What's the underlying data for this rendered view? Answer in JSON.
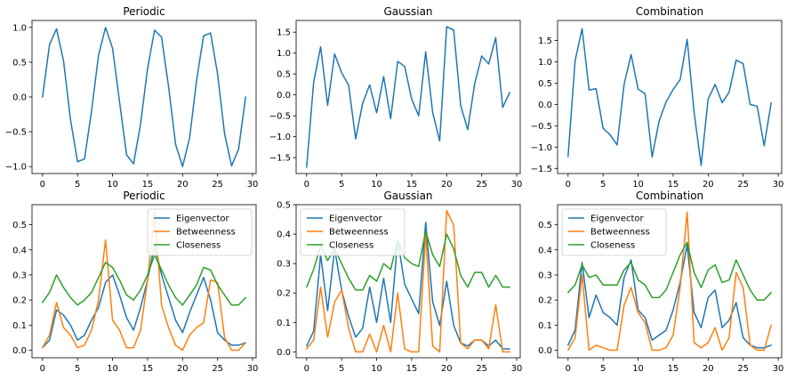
{
  "figure": {
    "rows": 2,
    "cols": 3
  },
  "colors": {
    "blue": "#1f77b4",
    "orange": "#ff7f0e",
    "green": "#2ca02c"
  },
  "chart_data": [
    {
      "type": "line",
      "title": "Periodic",
      "xlabel": "",
      "ylabel": "",
      "xlim": [
        -1.5,
        30.5
      ],
      "ylim": [
        -1.1,
        1.1
      ],
      "xticks": [
        0,
        5,
        10,
        15,
        20,
        25,
        30
      ],
      "yticks": [
        -1.0,
        -0.5,
        0.0,
        0.5,
        1.0
      ],
      "ytick_labels": [
        "−1.0",
        "−0.5",
        "0.0",
        "0.5",
        "1.0"
      ],
      "legend": null,
      "series": [
        {
          "color": "#1f77b4",
          "x": [
            0,
            1,
            2,
            3,
            4,
            5,
            6,
            7,
            8,
            9,
            10,
            11,
            12,
            13,
            14,
            15,
            16,
            17,
            18,
            19,
            20,
            21,
            22,
            23,
            24,
            25,
            26,
            27,
            28,
            29
          ],
          "values": [
            0.0,
            0.75,
            0.98,
            0.52,
            -0.33,
            -0.93,
            -0.89,
            -0.2,
            0.6,
            1.0,
            0.7,
            -0.07,
            -0.83,
            -0.96,
            -0.39,
            0.41,
            0.96,
            0.86,
            0.15,
            -0.68,
            -1.0,
            -0.59,
            0.24,
            0.88,
            0.92,
            0.33,
            -0.53,
            -0.99,
            -0.75,
            0.0
          ]
        }
      ]
    },
    {
      "type": "line",
      "title": "Gaussian",
      "xlabel": "",
      "ylabel": "",
      "xlim": [
        -1.5,
        30.5
      ],
      "ylim": [
        -1.88,
        1.78
      ],
      "xticks": [
        0,
        5,
        10,
        15,
        20,
        25,
        30
      ],
      "yticks": [
        -1.5,
        -1.0,
        -0.5,
        0.0,
        0.5,
        1.0,
        1.5
      ],
      "ytick_labels": [
        "−1.5",
        "−1.0",
        "−0.5",
        "0.0",
        "0.5",
        "1.0",
        "1.5"
      ],
      "legend": null,
      "series": [
        {
          "color": "#1f77b4",
          "x": [
            0,
            1,
            2,
            3,
            4,
            5,
            6,
            7,
            8,
            9,
            10,
            11,
            12,
            13,
            14,
            15,
            16,
            17,
            18,
            19,
            20,
            21,
            22,
            23,
            24,
            25,
            26,
            27,
            28,
            29
          ],
          "values": [
            -1.73,
            0.3,
            1.15,
            -0.25,
            0.98,
            0.53,
            0.23,
            -1.05,
            -0.2,
            0.24,
            -0.43,
            0.44,
            -0.57,
            0.8,
            0.68,
            -0.1,
            -0.5,
            1.03,
            -0.42,
            -1.1,
            1.63,
            1.55,
            -0.25,
            -0.83,
            0.27,
            0.93,
            0.74,
            1.37,
            -0.3,
            0.06
          ]
        }
      ]
    },
    {
      "type": "line",
      "title": "Combination",
      "xlabel": "",
      "ylabel": "",
      "xlim": [
        -1.5,
        30.5
      ],
      "ylim": [
        -1.62,
        1.97
      ],
      "xticks": [
        0,
        5,
        10,
        15,
        20,
        25,
        30
      ],
      "yticks": [
        -1.5,
        -1.0,
        -0.5,
        0.0,
        0.5,
        1.0,
        1.5
      ],
      "ytick_labels": [
        "−1.5",
        "−1.0",
        "−0.5",
        "0.0",
        "0.5",
        "1.0",
        "1.5"
      ],
      "legend": null,
      "series": [
        {
          "color": "#1f77b4",
          "x": [
            0,
            1,
            2,
            3,
            4,
            5,
            6,
            7,
            8,
            9,
            10,
            11,
            12,
            13,
            14,
            15,
            16,
            17,
            18,
            19,
            20,
            21,
            22,
            23,
            24,
            25,
            26,
            27,
            28,
            29
          ],
          "values": [
            -1.22,
            1.02,
            1.78,
            0.34,
            0.37,
            -0.56,
            -0.71,
            -0.95,
            0.47,
            1.17,
            0.36,
            0.25,
            -1.23,
            -0.39,
            0.06,
            0.35,
            0.58,
            1.53,
            -0.19,
            -1.43,
            0.13,
            0.47,
            0.04,
            0.29,
            1.04,
            0.96,
            0.0,
            -0.04,
            -0.97,
            0.04
          ]
        }
      ]
    },
    {
      "type": "line",
      "title": "Periodic",
      "xlabel": "",
      "ylabel": "",
      "xlim": [
        -1.5,
        30.5
      ],
      "ylim": [
        -0.03,
        0.58
      ],
      "xticks": [
        0,
        5,
        10,
        15,
        20,
        25,
        30
      ],
      "yticks": [
        0.0,
        0.1,
        0.2,
        0.3,
        0.4,
        0.5
      ],
      "ytick_labels": [
        "0.0",
        "0.1",
        "0.2",
        "0.3",
        "0.4",
        "0.5"
      ],
      "legend": "top-right",
      "series": [
        {
          "name": "Eigenvector",
          "color": "#1f77b4",
          "x": [
            0,
            1,
            2,
            3,
            4,
            5,
            6,
            7,
            8,
            9,
            10,
            11,
            12,
            13,
            14,
            15,
            16,
            17,
            18,
            19,
            20,
            21,
            22,
            23,
            24,
            25,
            26,
            27,
            28,
            29
          ],
          "values": [
            0.01,
            0.04,
            0.16,
            0.14,
            0.1,
            0.04,
            0.06,
            0.12,
            0.17,
            0.27,
            0.3,
            0.22,
            0.13,
            0.08,
            0.17,
            0.28,
            0.42,
            0.3,
            0.21,
            0.12,
            0.07,
            0.15,
            0.22,
            0.29,
            0.2,
            0.07,
            0.04,
            0.02,
            0.02,
            0.03
          ]
        },
        {
          "name": "Betweenness",
          "color": "#ff7f0e",
          "x": [
            0,
            1,
            2,
            3,
            4,
            5,
            6,
            7,
            8,
            9,
            10,
            11,
            12,
            13,
            14,
            15,
            16,
            17,
            18,
            19,
            20,
            21,
            22,
            23,
            24,
            25,
            26,
            27,
            28,
            29
          ],
          "values": [
            0.01,
            0.06,
            0.19,
            0.09,
            0.06,
            0.01,
            0.02,
            0.08,
            0.2,
            0.44,
            0.12,
            0.08,
            0.01,
            0.01,
            0.08,
            0.28,
            0.55,
            0.18,
            0.09,
            0.02,
            0.0,
            0.06,
            0.09,
            0.11,
            0.28,
            0.27,
            0.05,
            0.0,
            0.0,
            0.03
          ]
        },
        {
          "name": "Closeness",
          "color": "#2ca02c",
          "x": [
            0,
            1,
            2,
            3,
            4,
            5,
            6,
            7,
            8,
            9,
            10,
            11,
            12,
            13,
            14,
            15,
            16,
            17,
            18,
            19,
            20,
            21,
            22,
            23,
            24,
            25,
            26,
            27,
            28,
            29
          ],
          "values": [
            0.19,
            0.23,
            0.3,
            0.25,
            0.21,
            0.18,
            0.2,
            0.23,
            0.29,
            0.35,
            0.33,
            0.28,
            0.22,
            0.2,
            0.24,
            0.3,
            0.38,
            0.32,
            0.26,
            0.21,
            0.18,
            0.22,
            0.26,
            0.33,
            0.32,
            0.26,
            0.22,
            0.18,
            0.18,
            0.21
          ]
        }
      ]
    },
    {
      "type": "line",
      "title": "Gaussian",
      "xlabel": "",
      "ylabel": "",
      "xlim": [
        -1.5,
        30.5
      ],
      "ylim": [
        -0.02,
        0.5
      ],
      "xticks": [
        0,
        5,
        10,
        15,
        20,
        25,
        30
      ],
      "yticks": [
        0.0,
        0.1,
        0.2,
        0.3,
        0.4,
        0.5
      ],
      "ytick_labels": [
        "0.0",
        "0.1",
        "0.2",
        "0.3",
        "0.4",
        "0.5"
      ],
      "legend": "top-left",
      "series": [
        {
          "name": "Eigenvector",
          "color": "#1f77b4",
          "x": [
            0,
            1,
            2,
            3,
            4,
            5,
            6,
            7,
            8,
            9,
            10,
            11,
            12,
            13,
            14,
            15,
            16,
            17,
            18,
            19,
            20,
            21,
            22,
            23,
            24,
            25,
            26,
            27,
            28,
            29
          ],
          "values": [
            0.02,
            0.07,
            0.33,
            0.14,
            0.35,
            0.21,
            0.12,
            0.05,
            0.08,
            0.22,
            0.1,
            0.25,
            0.1,
            0.38,
            0.23,
            0.18,
            0.13,
            0.44,
            0.17,
            0.09,
            0.24,
            0.09,
            0.03,
            0.02,
            0.04,
            0.04,
            0.02,
            0.04,
            0.01,
            0.01
          ]
        },
        {
          "name": "Betweenness",
          "color": "#ff7f0e",
          "x": [
            0,
            1,
            2,
            3,
            4,
            5,
            6,
            7,
            8,
            9,
            10,
            11,
            12,
            13,
            14,
            15,
            16,
            17,
            18,
            19,
            20,
            21,
            22,
            23,
            24,
            25,
            26,
            27,
            28,
            29
          ],
          "values": [
            0.01,
            0.04,
            0.22,
            0.05,
            0.17,
            0.21,
            0.08,
            0.0,
            0.0,
            0.06,
            0.0,
            0.09,
            0.0,
            0.2,
            0.01,
            0.0,
            0.0,
            0.4,
            0.02,
            0.0,
            0.48,
            0.43,
            0.03,
            0.01,
            0.04,
            0.04,
            0.01,
            0.16,
            0.0,
            0.0
          ]
        },
        {
          "name": "Closeness",
          "color": "#2ca02c",
          "x": [
            0,
            1,
            2,
            3,
            4,
            5,
            6,
            7,
            8,
            9,
            10,
            11,
            12,
            13,
            14,
            15,
            16,
            17,
            18,
            19,
            20,
            21,
            22,
            23,
            24,
            25,
            26,
            27,
            28,
            29
          ],
          "values": [
            0.22,
            0.28,
            0.36,
            0.31,
            0.35,
            0.3,
            0.25,
            0.21,
            0.21,
            0.26,
            0.24,
            0.3,
            0.28,
            0.38,
            0.32,
            0.3,
            0.29,
            0.41,
            0.33,
            0.29,
            0.4,
            0.35,
            0.26,
            0.22,
            0.27,
            0.27,
            0.22,
            0.26,
            0.22,
            0.22
          ]
        }
      ]
    },
    {
      "type": "line",
      "title": "Combination",
      "xlabel": "",
      "ylabel": "",
      "xlim": [
        -1.5,
        30.5
      ],
      "ylim": [
        -0.03,
        0.58
      ],
      "xticks": [
        0,
        5,
        10,
        15,
        20,
        25,
        30
      ],
      "yticks": [
        0.0,
        0.1,
        0.2,
        0.3,
        0.4,
        0.5
      ],
      "ytick_labels": [
        "0.0",
        "0.1",
        "0.2",
        "0.3",
        "0.4",
        "0.5"
      ],
      "legend": "top-left",
      "series": [
        {
          "name": "Eigenvector",
          "color": "#1f77b4",
          "x": [
            0,
            1,
            2,
            3,
            4,
            5,
            6,
            7,
            8,
            9,
            10,
            11,
            12,
            13,
            14,
            15,
            16,
            17,
            18,
            19,
            20,
            21,
            22,
            23,
            24,
            25,
            26,
            27,
            28,
            29
          ],
          "values": [
            0.02,
            0.08,
            0.35,
            0.13,
            0.22,
            0.15,
            0.13,
            0.1,
            0.29,
            0.36,
            0.16,
            0.13,
            0.04,
            0.06,
            0.08,
            0.16,
            0.27,
            0.42,
            0.15,
            0.09,
            0.21,
            0.24,
            0.09,
            0.12,
            0.19,
            0.05,
            0.02,
            0.01,
            0.01,
            0.02
          ]
        },
        {
          "name": "Betweenness",
          "color": "#ff7f0e",
          "x": [
            0,
            1,
            2,
            3,
            4,
            5,
            6,
            7,
            8,
            9,
            10,
            11,
            12,
            13,
            14,
            15,
            16,
            17,
            18,
            19,
            20,
            21,
            22,
            23,
            24,
            25,
            26,
            27,
            28,
            29
          ],
          "values": [
            0.0,
            0.05,
            0.3,
            0.0,
            0.02,
            0.01,
            0.0,
            0.0,
            0.18,
            0.25,
            0.15,
            0.11,
            0.0,
            0.0,
            0.01,
            0.06,
            0.25,
            0.55,
            0.03,
            0.01,
            0.03,
            0.09,
            0.0,
            0.05,
            0.31,
            0.25,
            0.02,
            0.0,
            0.0,
            0.1
          ]
        },
        {
          "name": "Closeness",
          "color": "#2ca02c",
          "x": [
            0,
            1,
            2,
            3,
            4,
            5,
            6,
            7,
            8,
            9,
            10,
            11,
            12,
            13,
            14,
            15,
            16,
            17,
            18,
            19,
            20,
            21,
            22,
            23,
            24,
            25,
            26,
            27,
            28,
            29
          ],
          "values": [
            0.23,
            0.26,
            0.34,
            0.29,
            0.3,
            0.26,
            0.26,
            0.26,
            0.32,
            0.35,
            0.28,
            0.26,
            0.21,
            0.21,
            0.24,
            0.31,
            0.38,
            0.43,
            0.31,
            0.25,
            0.32,
            0.34,
            0.27,
            0.28,
            0.36,
            0.3,
            0.24,
            0.2,
            0.2,
            0.23
          ]
        }
      ]
    }
  ]
}
